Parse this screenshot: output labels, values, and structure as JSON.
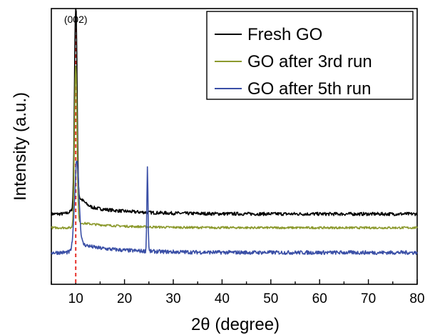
{
  "chart_data": {
    "type": "line",
    "xlabel": "2θ (degree)",
    "ylabel": "Intensity (a.u.)",
    "xlim": [
      5,
      80
    ],
    "xticks": [
      10,
      20,
      30,
      40,
      50,
      60,
      70,
      80
    ],
    "yticks_shown": false,
    "legend_position": "top-right",
    "annotation": {
      "text": "(002)",
      "x": 10,
      "line_style": "dashed",
      "color": "#e8302a"
    },
    "series": [
      {
        "name": "Fresh GO",
        "color": "#000000",
        "baseline": 0.255,
        "noise": 0.006,
        "peaks": [
          {
            "x": 10.0,
            "height": 0.99,
            "width": 0.25
          },
          {
            "x": 10.6,
            "height": 0.28,
            "width": 1.2
          },
          {
            "x": 42.5,
            "height": 0.035,
            "width": 1.0
          }
        ],
        "decay": {
          "x0": 10,
          "amp": 0.035,
          "tau": 8
        }
      },
      {
        "name": "GO after 3rd run",
        "color": "#8c9a2e",
        "baseline": 0.205,
        "noise": 0.004,
        "peaks": [
          {
            "x": 10.0,
            "height": 0.79,
            "width": 0.25
          },
          {
            "x": 10.6,
            "height": 0.18,
            "width": 1.2
          },
          {
            "x": 42.5,
            "height": 0.02,
            "width": 1.2
          }
        ],
        "decay": {
          "x0": 10,
          "amp": 0.02,
          "tau": 8
        }
      },
      {
        "name": "GO after 5th run",
        "color": "#3a4fa6",
        "baseline": 0.115,
        "noise": 0.007,
        "peaks": [
          {
            "x": 10.2,
            "height": 0.42,
            "width": 0.45
          },
          {
            "x": 10.9,
            "height": 0.12,
            "width": 1.5
          },
          {
            "x": 24.7,
            "height": 0.42,
            "width": 0.12
          },
          {
            "x": 43.0,
            "height": 0.045,
            "width": 1.0
          }
        ],
        "decay": {
          "x0": 10,
          "amp": 0.03,
          "tau": 8
        }
      }
    ]
  }
}
